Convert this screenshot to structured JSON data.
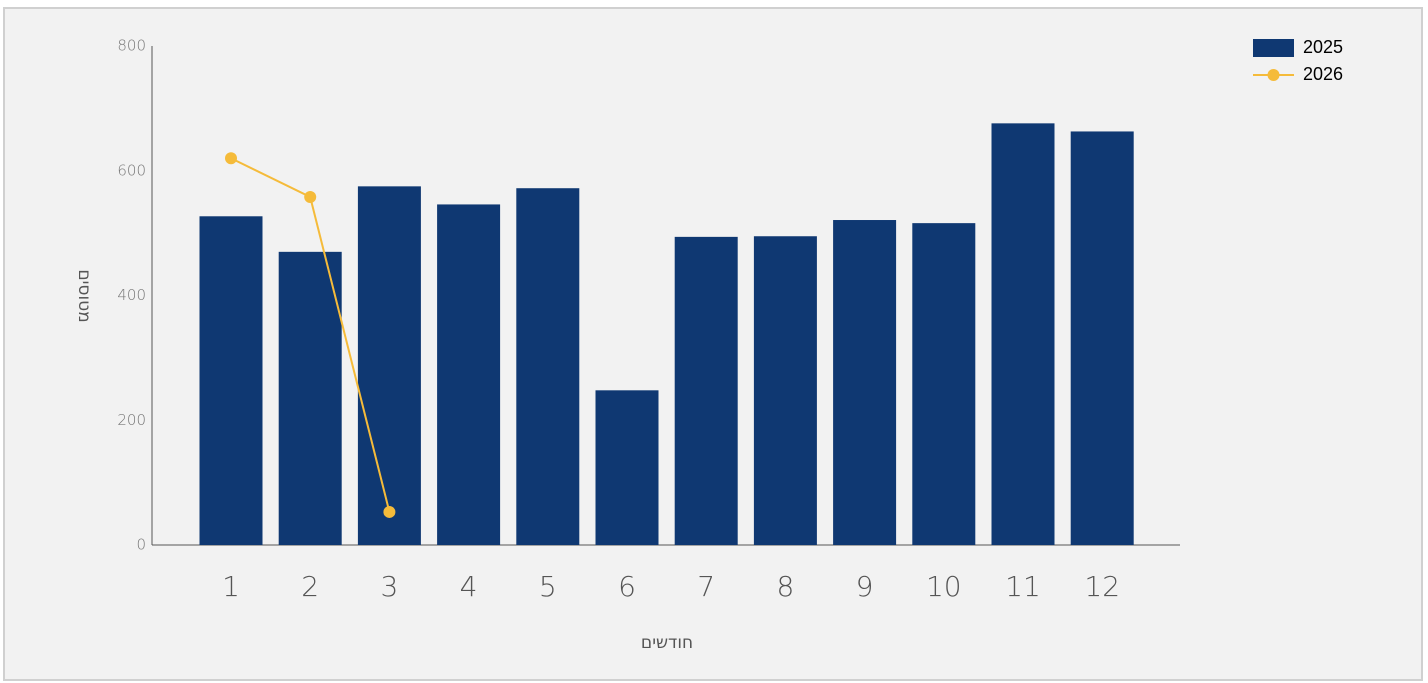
{
  "chart_data": {
    "type": "combo",
    "y_label": "מטוסים",
    "x_label": "חודשים",
    "categories": [
      "1",
      "2",
      "3",
      "4",
      "5",
      "6",
      "7",
      "8",
      "9",
      "10",
      "11",
      "12"
    ],
    "series": [
      {
        "name": "2025",
        "type": "bar",
        "color": "#0f3872",
        "values": [
          527,
          470,
          575,
          546,
          572,
          248,
          494,
          495,
          521,
          516,
          676,
          663
        ]
      },
      {
        "name": "2026",
        "type": "line",
        "color": "#f5bb3a",
        "values": [
          620,
          558,
          53,
          null,
          null,
          null,
          null,
          null,
          null,
          null,
          null,
          null
        ]
      }
    ],
    "ylim": [
      0,
      800
    ],
    "yticks": [
      0,
      200,
      400,
      600,
      800
    ],
    "grid": false,
    "legend": "top-right"
  }
}
